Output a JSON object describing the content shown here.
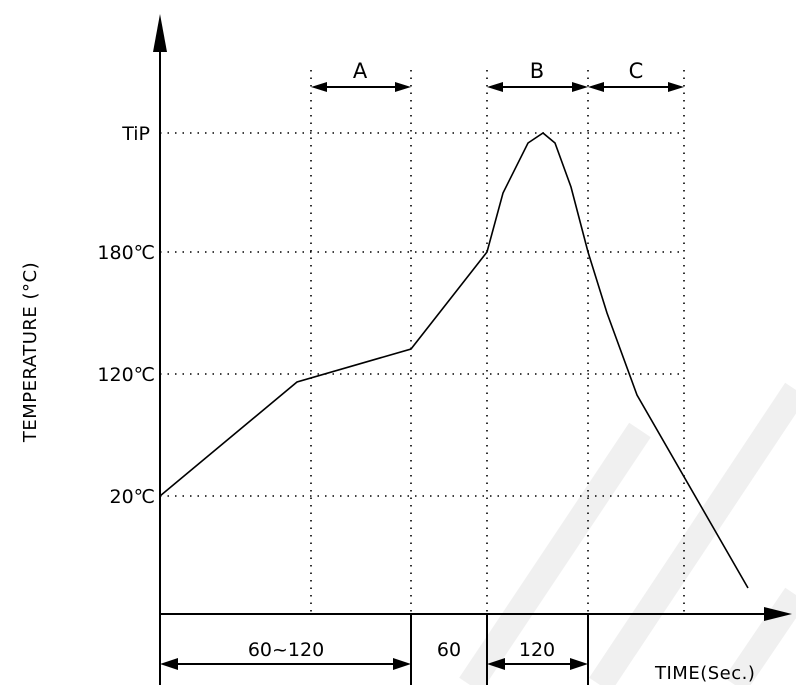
{
  "chart_data": {
    "type": "line",
    "title": "",
    "ylabel": "TEMPERATURE (°C)",
    "xlabel": "TIME(Sec.)",
    "y_tick_labels": [
      "TiP",
      "180℃",
      "120℃",
      "20℃"
    ],
    "zone_labels": [
      "A",
      "B",
      "C"
    ],
    "duration_labels": [
      "60~120",
      "60",
      "120"
    ],
    "grid": "dotted",
    "line_color": "#000000",
    "watermark_color": "#f0f0f0"
  }
}
